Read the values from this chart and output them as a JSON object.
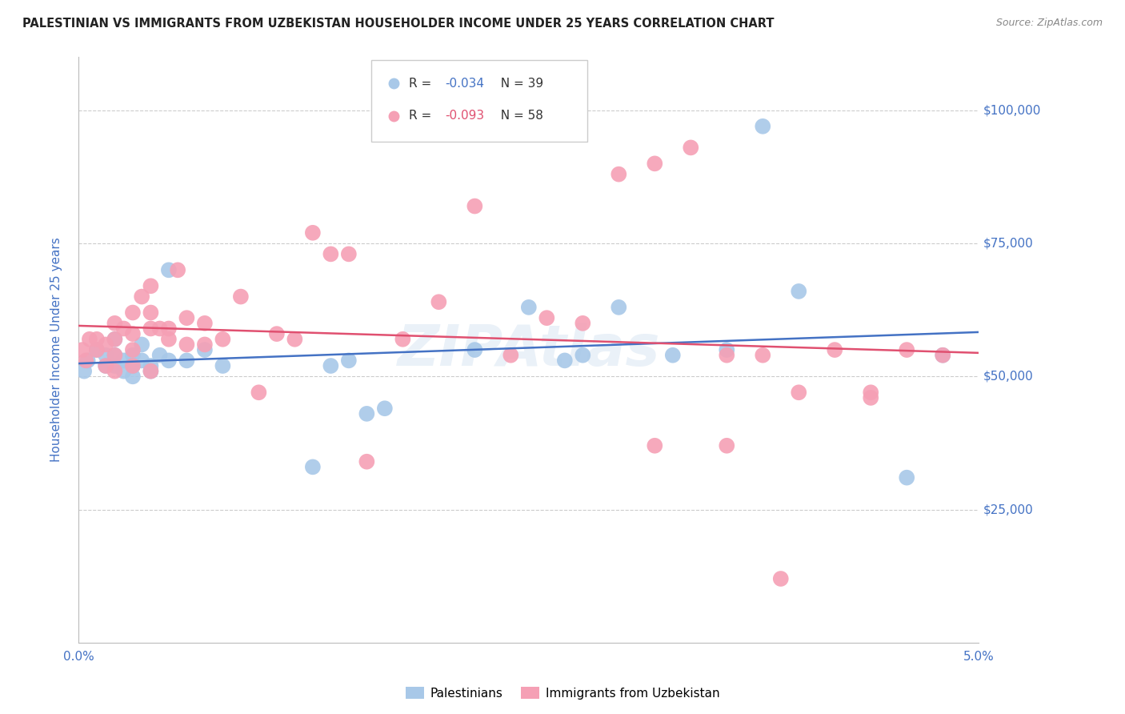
{
  "title": "PALESTINIAN VS IMMIGRANTS FROM UZBEKISTAN HOUSEHOLDER INCOME UNDER 25 YEARS CORRELATION CHART",
  "source": "Source: ZipAtlas.com",
  "ylabel": "Householder Income Under 25 years",
  "xlim": [
    0.0,
    0.05
  ],
  "ylim": [
    0,
    110000
  ],
  "yticks": [
    0,
    25000,
    50000,
    75000,
    100000
  ],
  "ytick_labels": [
    "",
    "$25,000",
    "$50,000",
    "$75,000",
    "$100,000"
  ],
  "legend_r_blue": "R = ",
  "legend_r_blue_val": "-0.034",
  "legend_n_blue": "N = 39",
  "legend_r_pink": "R = ",
  "legend_r_pink_val": "-0.093",
  "legend_n_pink": "N = 58",
  "legend_label_blue": "Palestinians",
  "legend_label_pink": "Immigrants from Uzbekistan",
  "blue_color": "#a8c8e8",
  "pink_color": "#f5a0b5",
  "blue_line_color": "#4472c4",
  "pink_line_color": "#e05070",
  "axis_label_color": "#4472c4",
  "grid_color": "#cccccc",
  "watermark": "ZIPAtlas",
  "blue_x": [
    0.0003,
    0.0005,
    0.001,
    0.0015,
    0.0015,
    0.002,
    0.002,
    0.002,
    0.0025,
    0.0025,
    0.003,
    0.003,
    0.003,
    0.0035,
    0.0035,
    0.004,
    0.004,
    0.0045,
    0.005,
    0.005,
    0.006,
    0.007,
    0.008,
    0.013,
    0.014,
    0.015,
    0.016,
    0.017,
    0.022,
    0.025,
    0.027,
    0.028,
    0.03,
    0.033,
    0.036,
    0.038,
    0.04,
    0.046,
    0.048
  ],
  "blue_y": [
    51000,
    53000,
    55000,
    52000,
    54000,
    52000,
    54000,
    57000,
    51000,
    53000,
    50000,
    52000,
    54000,
    53000,
    56000,
    51000,
    52000,
    54000,
    53000,
    70000,
    53000,
    55000,
    52000,
    33000,
    52000,
    53000,
    43000,
    44000,
    55000,
    63000,
    53000,
    54000,
    63000,
    54000,
    55000,
    97000,
    66000,
    31000,
    54000
  ],
  "pink_x": [
    0.0002,
    0.0004,
    0.0006,
    0.001,
    0.001,
    0.0015,
    0.0015,
    0.002,
    0.002,
    0.002,
    0.002,
    0.0025,
    0.003,
    0.003,
    0.003,
    0.003,
    0.0035,
    0.004,
    0.004,
    0.004,
    0.004,
    0.0045,
    0.005,
    0.005,
    0.0055,
    0.006,
    0.006,
    0.007,
    0.007,
    0.008,
    0.009,
    0.01,
    0.011,
    0.012,
    0.013,
    0.014,
    0.015,
    0.016,
    0.018,
    0.02,
    0.022,
    0.024,
    0.026,
    0.028,
    0.03,
    0.032,
    0.034,
    0.036,
    0.038,
    0.04,
    0.042,
    0.044,
    0.046,
    0.048,
    0.032,
    0.036,
    0.039,
    0.044
  ],
  "pink_y": [
    55000,
    53000,
    57000,
    55000,
    57000,
    52000,
    56000,
    51000,
    54000,
    57000,
    60000,
    59000,
    52000,
    55000,
    58000,
    62000,
    65000,
    51000,
    59000,
    62000,
    67000,
    59000,
    57000,
    59000,
    70000,
    56000,
    61000,
    56000,
    60000,
    57000,
    65000,
    47000,
    58000,
    57000,
    77000,
    73000,
    73000,
    34000,
    57000,
    64000,
    82000,
    54000,
    61000,
    60000,
    88000,
    90000,
    93000,
    54000,
    54000,
    47000,
    55000,
    47000,
    55000,
    54000,
    37000,
    37000,
    12000,
    46000
  ]
}
